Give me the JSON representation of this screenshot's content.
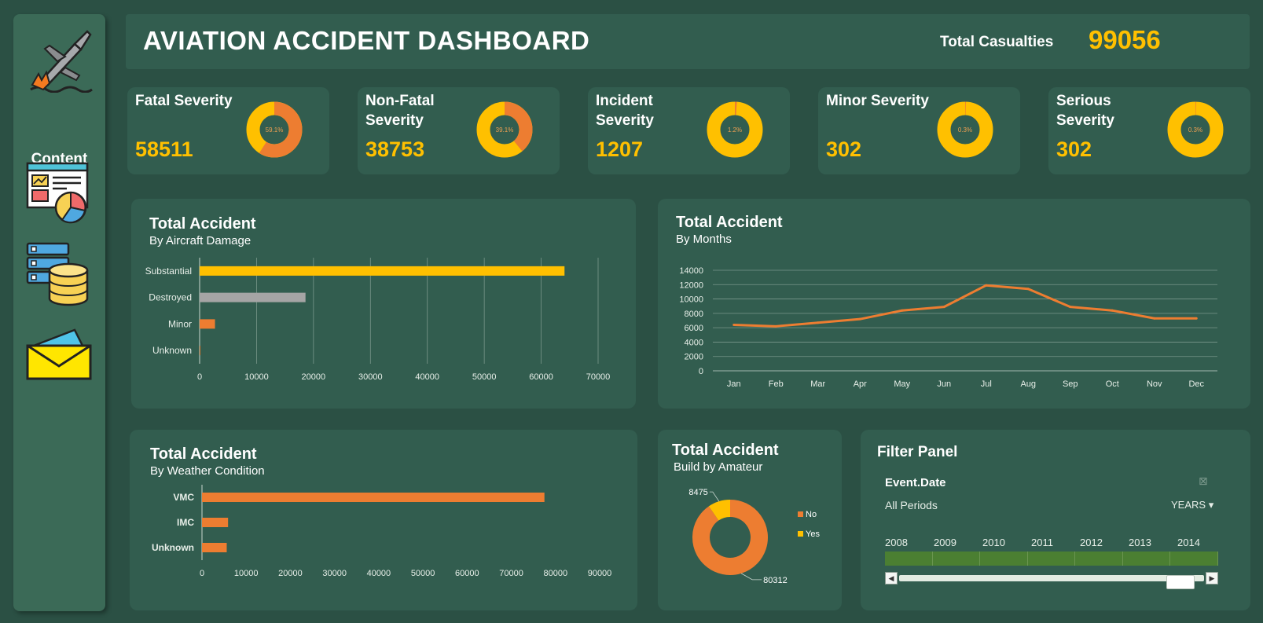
{
  "sidebar": {
    "title": "Content",
    "icons": [
      "airplane-crash-icon",
      "dashboard-report-icon",
      "database-icon",
      "mail-icon"
    ]
  },
  "header": {
    "title": "AVIATION ACCIDENT DASHBOARD",
    "casualties_label": "Total Casualties",
    "casualties_value": "99056"
  },
  "colors": {
    "background": "#2b5044",
    "panel": "#325d4f",
    "orange": "#ed7d31",
    "yellow": "#ffc000",
    "gray": "#a5a5a5"
  },
  "kpis": [
    {
      "label": "Fatal Severity",
      "value": "58511",
      "percent": 59.1,
      "percent_label": "59.1%"
    },
    {
      "label": "Non-Fatal Severity",
      "value": "38753",
      "percent": 39.1,
      "percent_label": "39.1%"
    },
    {
      "label": "Incident Severity",
      "value": "1207",
      "percent": 1.2,
      "percent_label": "1.2%"
    },
    {
      "label": "Minor Severity",
      "value": "302",
      "percent": 0.3,
      "percent_label": "0.3%"
    },
    {
      "label": "Serious Severity",
      "value": "302",
      "percent": 0.3,
      "percent_label": "0.3%"
    }
  ],
  "chart_data": [
    {
      "id": "damage",
      "type": "bar",
      "orientation": "horizontal",
      "title": "Total Accident",
      "subtitle": "By Aircraft Damage",
      "categories": [
        "Substantial",
        "Destroyed",
        "Minor",
        "Unknown"
      ],
      "values": [
        64100,
        18600,
        2700,
        120
      ],
      "colors": [
        "#ffc000",
        "#a5a5a5",
        "#ed7d31",
        "#ed7d31"
      ],
      "xlim": [
        0,
        70000
      ],
      "xticks": [
        "0",
        "10000",
        "20000",
        "30000",
        "40000",
        "50000",
        "60000",
        "70000"
      ],
      "grid": true
    },
    {
      "id": "months",
      "type": "line",
      "title": "Total Accident",
      "subtitle": "By Months",
      "categories": [
        "Jan",
        "Feb",
        "Mar",
        "Apr",
        "May",
        "Jun",
        "Jul",
        "Aug",
        "Sep",
        "Oct",
        "Nov",
        "Dec"
      ],
      "values": [
        6400,
        6200,
        6700,
        7200,
        8400,
        8900,
        11900,
        11400,
        8900,
        8400,
        7300,
        7300
      ],
      "ylim": [
        0,
        14000
      ],
      "yticks": [
        "0",
        "2000",
        "4000",
        "6000",
        "8000",
        "10000",
        "12000",
        "14000"
      ],
      "color": "#ed7d31",
      "grid": true
    },
    {
      "id": "weather",
      "type": "bar",
      "orientation": "horizontal",
      "title": "Total Accident",
      "subtitle": "By Weather Condition",
      "categories": [
        "VMC",
        "IMC",
        "Unknown"
      ],
      "values": [
        77500,
        5900,
        5600
      ],
      "colors": [
        "#ed7d31",
        "#ed7d31",
        "#ed7d31"
      ],
      "xlim": [
        0,
        90000
      ],
      "xticks": [
        "0",
        "10000",
        "20000",
        "30000",
        "40000",
        "50000",
        "60000",
        "70000",
        "80000",
        "90000"
      ],
      "grid": false
    },
    {
      "id": "amateur",
      "type": "pie",
      "title": "Total Accident",
      "subtitle": "Build by Amateur",
      "labels": [
        "No",
        "Yes"
      ],
      "values": [
        80312,
        8475
      ],
      "value_labels": [
        "80312",
        "8475"
      ],
      "colors": [
        "#ed7d31",
        "#ffc000"
      ],
      "legend": "right"
    }
  ],
  "filter": {
    "title": "Filter Panel",
    "field": "Event.Date",
    "period": "All Periods",
    "granularity": "YEARS",
    "years": [
      "2008",
      "2009",
      "2010",
      "2011",
      "2012",
      "2013",
      "2014"
    ]
  }
}
